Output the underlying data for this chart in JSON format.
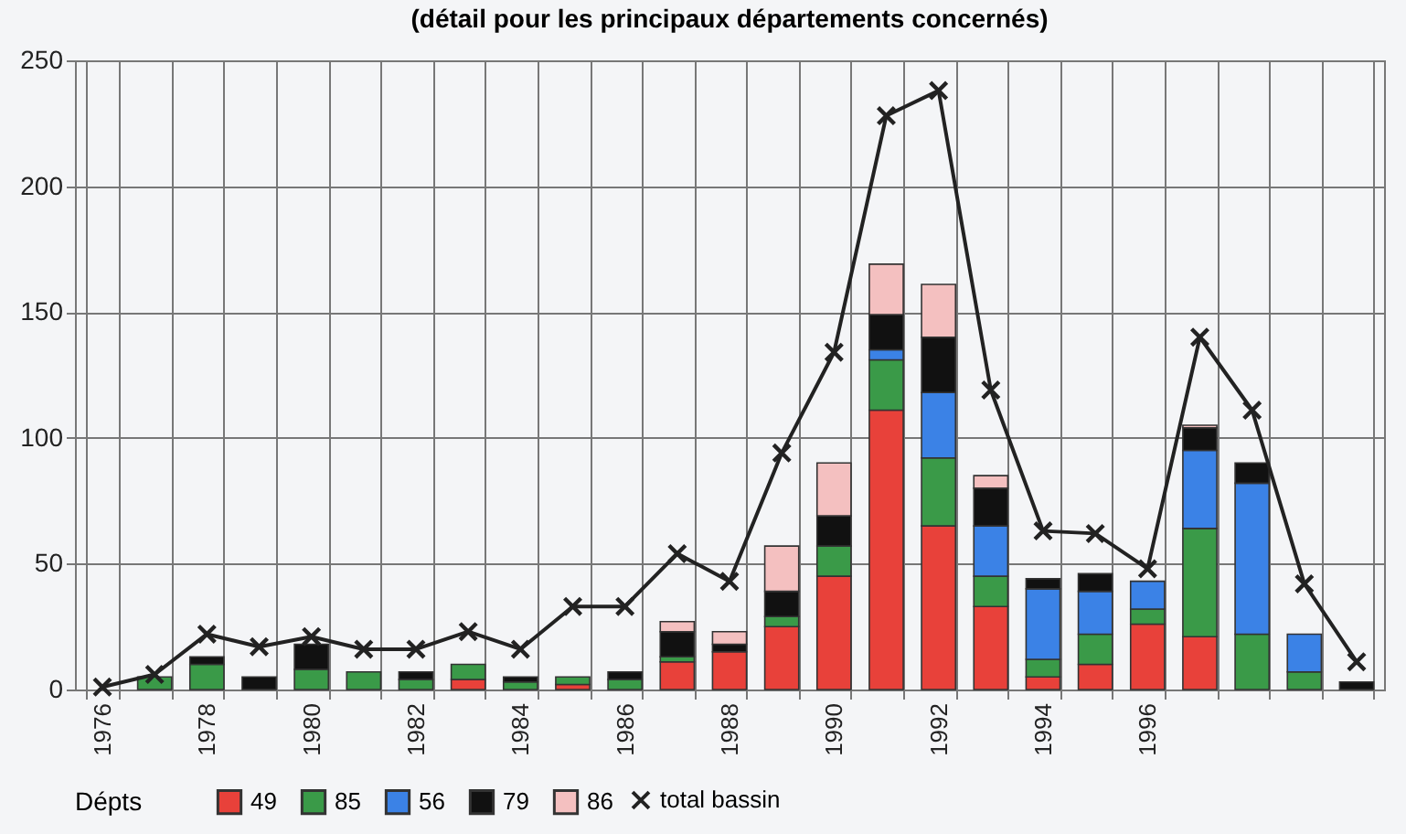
{
  "chart_data": {
    "type": "bar",
    "title": "(détail pour les principaux départements concernés)",
    "categories": [
      "1976",
      null,
      "1978",
      null,
      "1980",
      null,
      "1982",
      null,
      "1984",
      null,
      "1986",
      null,
      "1988",
      null,
      "1990",
      null,
      "1992",
      null,
      "1994",
      null,
      "1996",
      null,
      null,
      null,
      null
    ],
    "series": [
      {
        "name": "49",
        "color": "#e8413a",
        "values": [
          null,
          null,
          null,
          null,
          null,
          null,
          null,
          4,
          null,
          2,
          null,
          11,
          15,
          25,
          45,
          111,
          65,
          33,
          5,
          10,
          26,
          21,
          null,
          null,
          null
        ]
      },
      {
        "name": "85",
        "color": "#3a9a48",
        "values": [
          null,
          5,
          10,
          null,
          8,
          7,
          4,
          6,
          3,
          3,
          4,
          2,
          null,
          4,
          12,
          20,
          27,
          12,
          7,
          12,
          6,
          43,
          22,
          7,
          null
        ]
      },
      {
        "name": "56",
        "color": "#3b82e6",
        "values": [
          null,
          null,
          null,
          null,
          null,
          null,
          null,
          null,
          null,
          null,
          null,
          null,
          null,
          null,
          null,
          4,
          26,
          20,
          28,
          17,
          11,
          31,
          60,
          15,
          null
        ]
      },
      {
        "name": "79",
        "color": "#111111",
        "values": [
          null,
          null,
          3,
          5,
          10,
          null,
          3,
          null,
          2,
          null,
          3,
          10,
          3,
          10,
          12,
          14,
          22,
          15,
          4,
          7,
          null,
          9,
          8,
          null,
          3
        ]
      },
      {
        "name": "86",
        "color": "#f4c0c0",
        "values": [
          null,
          null,
          null,
          null,
          null,
          null,
          null,
          null,
          null,
          null,
          null,
          4,
          5,
          18,
          21,
          20,
          21,
          5,
          null,
          null,
          null,
          1,
          null,
          null,
          null
        ]
      },
      {
        "name": "total bassin",
        "type": "line",
        "color": "#222222",
        "marker": "cross",
        "line_style": "solid",
        "values": [
          1,
          6,
          22,
          17,
          21,
          16,
          16,
          23,
          16,
          33,
          33,
          54,
          43,
          94,
          134,
          228,
          238,
          119,
          63,
          62,
          48,
          140,
          111,
          42,
          11
        ]
      }
    ],
    "stacked": true,
    "legend_title": "Dépts",
    "legend": "bottom",
    "grid": true,
    "ylim": [
      0,
      250
    ],
    "yticks": [
      0,
      50,
      100,
      150,
      200,
      250
    ]
  }
}
